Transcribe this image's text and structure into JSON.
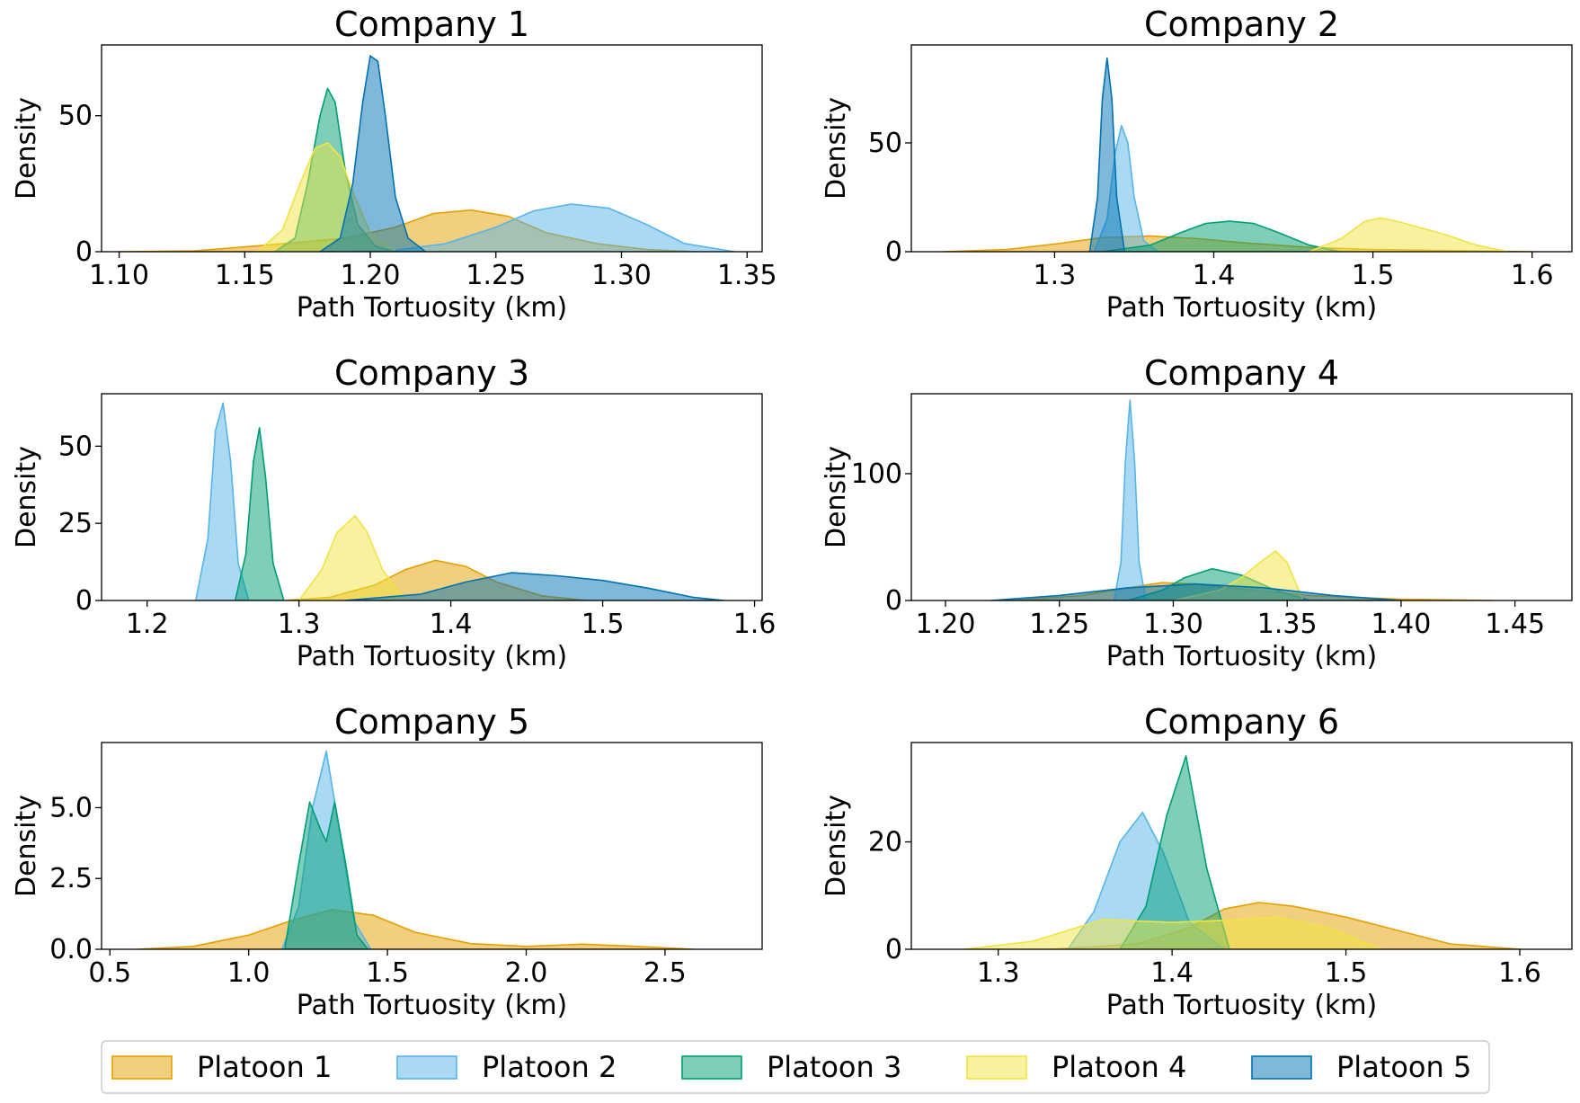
{
  "chart_data": [
    {
      "type": "area",
      "title": "Company 1",
      "xlabel": "Path Tortuosity (km)",
      "ylabel": "Density",
      "xlim": [
        1.093,
        1.356
      ],
      "ylim": [
        0,
        76
      ],
      "xticks": [
        1.1,
        1.15,
        1.2,
        1.25,
        1.3,
        1.35
      ],
      "xtick_labels": [
        "1.10",
        "1.15",
        "1.20",
        "1.25",
        "1.30",
        "1.35"
      ],
      "yticks": [
        0,
        50
      ],
      "ytick_labels": [
        "0",
        "50"
      ],
      "series": [
        {
          "name": "Platoon 1",
          "x": [
            1.1,
            1.13,
            1.16,
            1.19,
            1.21,
            1.225,
            1.24,
            1.255,
            1.27,
            1.29,
            1.31,
            1.33
          ],
          "y": [
            0,
            0.3,
            2.5,
            5,
            9,
            14,
            15.3,
            13,
            7,
            3,
            0.8,
            0
          ]
        },
        {
          "name": "Platoon 2",
          "x": [
            1.18,
            1.21,
            1.23,
            1.25,
            1.265,
            1.28,
            1.295,
            1.31,
            1.325,
            1.345
          ],
          "y": [
            0,
            0.5,
            3,
            9,
            15,
            17.5,
            16,
            10,
            3,
            0
          ]
        },
        {
          "name": "Platoon 3",
          "x": [
            1.162,
            1.17,
            1.175,
            1.18,
            1.183,
            1.186,
            1.19,
            1.195,
            1.202,
            1.21
          ],
          "y": [
            0,
            5,
            25,
            50,
            60,
            55,
            30,
            10,
            2,
            0
          ]
        },
        {
          "name": "Platoon 4",
          "x": [
            1.155,
            1.165,
            1.172,
            1.178,
            1.183,
            1.188,
            1.193,
            1.2,
            1.21
          ],
          "y": [
            0,
            8,
            25,
            38,
            40,
            35,
            22,
            7,
            0
          ]
        },
        {
          "name": "Platoon 5",
          "x": [
            1.18,
            1.188,
            1.193,
            1.197,
            1.2,
            1.203,
            1.206,
            1.21,
            1.215,
            1.222
          ],
          "y": [
            0,
            5,
            25,
            55,
            72,
            70,
            50,
            20,
            5,
            0
          ]
        }
      ]
    },
    {
      "type": "area",
      "title": "Company 2",
      "xlabel": "Path Tortuosity (km)",
      "ylabel": "Density",
      "xlim": [
        1.21,
        1.625
      ],
      "ylim": [
        0,
        95
      ],
      "xticks": [
        1.3,
        1.4,
        1.5,
        1.6
      ],
      "xtick_labels": [
        "1.3",
        "1.4",
        "1.5",
        "1.6"
      ],
      "yticks": [
        0,
        50
      ],
      "ytick_labels": [
        "0",
        "50"
      ],
      "series": [
        {
          "name": "Platoon 1",
          "x": [
            1.23,
            1.27,
            1.3,
            1.33,
            1.36,
            1.39,
            1.42,
            1.46,
            1.5,
            1.55,
            1.6
          ],
          "y": [
            0,
            1,
            3.5,
            6.5,
            7.2,
            6,
            4,
            2,
            1,
            0.5,
            0
          ]
        },
        {
          "name": "Platoon 2",
          "x": [
            1.325,
            1.333,
            1.338,
            1.342,
            1.346,
            1.35,
            1.356,
            1.365
          ],
          "y": [
            0,
            15,
            45,
            58,
            50,
            25,
            5,
            0
          ]
        },
        {
          "name": "Platoon 3",
          "x": [
            1.33,
            1.36,
            1.38,
            1.395,
            1.41,
            1.425,
            1.44,
            1.46,
            1.48
          ],
          "y": [
            0,
            3,
            9,
            13,
            14,
            13,
            9,
            3,
            0
          ]
        },
        {
          "name": "Platoon 4",
          "x": [
            1.46,
            1.48,
            1.495,
            1.505,
            1.515,
            1.53,
            1.545,
            1.565,
            1.585
          ],
          "y": [
            0,
            6,
            14,
            15.5,
            14,
            11,
            8,
            3,
            0
          ]
        },
        {
          "name": "Platoon 5",
          "x": [
            1.322,
            1.327,
            1.33,
            1.333,
            1.336,
            1.339,
            1.344
          ],
          "y": [
            0,
            25,
            70,
            89,
            70,
            25,
            0
          ]
        }
      ]
    },
    {
      "type": "area",
      "title": "Company 3",
      "xlabel": "Path Tortuosity (km)",
      "ylabel": "Density",
      "xlim": [
        1.17,
        1.605
      ],
      "ylim": [
        0,
        67
      ],
      "xticks": [
        1.2,
        1.3,
        1.4,
        1.5,
        1.6
      ],
      "xtick_labels": [
        "1.2",
        "1.3",
        "1.4",
        "1.5",
        "1.6"
      ],
      "yticks": [
        0,
        25,
        50
      ],
      "ytick_labels": [
        "0",
        "25",
        "50"
      ],
      "series": [
        {
          "name": "Platoon 1",
          "x": [
            1.29,
            1.32,
            1.35,
            1.37,
            1.39,
            1.41,
            1.43,
            1.46,
            1.49
          ],
          "y": [
            0,
            1,
            5,
            10,
            13,
            11,
            6,
            1.5,
            0
          ]
        },
        {
          "name": "Platoon 2",
          "x": [
            1.232,
            1.24,
            1.245,
            1.25,
            1.255,
            1.26,
            1.267
          ],
          "y": [
            0,
            20,
            55,
            64,
            45,
            12,
            0
          ]
        },
        {
          "name": "Platoon 3",
          "x": [
            1.258,
            1.265,
            1.27,
            1.274,
            1.278,
            1.283,
            1.29
          ],
          "y": [
            0,
            15,
            45,
            56,
            40,
            12,
            0
          ]
        },
        {
          "name": "Platoon 4",
          "x": [
            1.3,
            1.315,
            1.325,
            1.337,
            1.345,
            1.355,
            1.37
          ],
          "y": [
            0,
            10,
            22,
            27.5,
            22,
            10,
            0
          ]
        },
        {
          "name": "Platoon 5",
          "x": [
            1.33,
            1.38,
            1.41,
            1.44,
            1.47,
            1.5,
            1.53,
            1.56,
            1.58
          ],
          "y": [
            0,
            2,
            6,
            9,
            8,
            6.5,
            4,
            1,
            0
          ]
        }
      ]
    },
    {
      "type": "area",
      "title": "Company 4",
      "xlabel": "Path Tortuosity (km)",
      "ylabel": "Density",
      "xlim": [
        1.185,
        1.475
      ],
      "ylim": [
        0,
        163
      ],
      "xticks": [
        1.2,
        1.25,
        1.3,
        1.35,
        1.4,
        1.45
      ],
      "xtick_labels": [
        "1.20",
        "1.25",
        "1.30",
        "1.35",
        "1.40",
        "1.45"
      ],
      "yticks": [
        0,
        100
      ],
      "ytick_labels": [
        "0",
        "100"
      ],
      "series": [
        {
          "name": "Platoon 1",
          "x": [
            1.23,
            1.26,
            1.28,
            1.295,
            1.31,
            1.33,
            1.36,
            1.4,
            1.44
          ],
          "y": [
            0,
            4,
            10,
            14,
            13,
            9,
            4,
            1,
            0
          ]
        },
        {
          "name": "Platoon 2",
          "x": [
            1.274,
            1.277,
            1.279,
            1.281,
            1.283,
            1.285,
            1.288
          ],
          "y": [
            0,
            30,
            110,
            158,
            110,
            30,
            0
          ]
        },
        {
          "name": "Platoon 3",
          "x": [
            1.28,
            1.295,
            1.305,
            1.317,
            1.33,
            1.345,
            1.36
          ],
          "y": [
            0,
            8,
            18,
            25,
            20,
            8,
            0
          ]
        },
        {
          "name": "Platoon 4",
          "x": [
            1.3,
            1.32,
            1.33,
            1.338,
            1.345,
            1.35,
            1.357
          ],
          "y": [
            0,
            8,
            18,
            30,
            39,
            30,
            0
          ]
        },
        {
          "name": "Platoon 5",
          "x": [
            1.22,
            1.25,
            1.28,
            1.31,
            1.34,
            1.37,
            1.4
          ],
          "y": [
            0,
            4,
            10,
            13,
            10,
            4,
            0
          ]
        }
      ]
    },
    {
      "type": "area",
      "title": "Company 5",
      "xlabel": "Path Tortuosity (km)",
      "ylabel": "Density",
      "xlim": [
        0.47,
        2.85
      ],
      "ylim": [
        0,
        7.3
      ],
      "xticks": [
        0.5,
        1.0,
        1.5,
        2.0,
        2.5
      ],
      "xtick_labels": [
        "0.5",
        "1.0",
        "1.5",
        "2.0",
        "2.5"
      ],
      "yticks": [
        0,
        2.5,
        5.0
      ],
      "ytick_labels": [
        "0.0",
        "2.5",
        "5.0"
      ],
      "series": [
        {
          "name": "Platoon 1",
          "x": [
            0.6,
            0.8,
            1.0,
            1.15,
            1.3,
            1.45,
            1.6,
            1.8,
            2.0,
            2.2,
            2.4,
            2.6
          ],
          "y": [
            0,
            0.1,
            0.5,
            1.0,
            1.4,
            1.2,
            0.6,
            0.2,
            0.1,
            0.18,
            0.1,
            0
          ]
        },
        {
          "name": "Platoon 2",
          "x": [
            1.12,
            1.18,
            1.23,
            1.28,
            1.33,
            1.38,
            1.44
          ],
          "y": [
            0,
            1.5,
            5,
            7,
            4,
            1,
            0
          ]
        },
        {
          "name": "Platoon 3",
          "x": [
            1.13,
            1.18,
            1.22,
            1.26,
            1.28,
            1.31,
            1.35,
            1.39,
            1.43
          ],
          "y": [
            0,
            3,
            5.2,
            4.2,
            3.8,
            5.2,
            3,
            0.5,
            0
          ]
        }
      ]
    },
    {
      "type": "area",
      "title": "Company 6",
      "xlabel": "Path Tortuosity (km)",
      "ylabel": "Density",
      "xlim": [
        1.25,
        1.63
      ],
      "ylim": [
        0,
        38.5
      ],
      "xticks": [
        1.3,
        1.4,
        1.5,
        1.6
      ],
      "xtick_labels": [
        "1.3",
        "1.4",
        "1.5",
        "1.6"
      ],
      "yticks": [
        0,
        20
      ],
      "ytick_labels": [
        "0",
        "20"
      ],
      "series": [
        {
          "name": "Platoon 1",
          "x": [
            1.33,
            1.38,
            1.41,
            1.43,
            1.45,
            1.47,
            1.5,
            1.53,
            1.56,
            1.6
          ],
          "y": [
            0,
            1,
            4,
            7.5,
            8.7,
            8,
            6,
            3.5,
            1,
            0
          ]
        },
        {
          "name": "Platoon 2",
          "x": [
            1.34,
            1.355,
            1.37,
            1.383,
            1.395,
            1.41,
            1.43
          ],
          "y": [
            0,
            7,
            20,
            25.5,
            18,
            5,
            0
          ]
        },
        {
          "name": "Platoon 3",
          "x": [
            1.37,
            1.385,
            1.397,
            1.408,
            1.42,
            1.433
          ],
          "y": [
            0,
            8,
            25,
            36,
            15,
            0
          ]
        },
        {
          "name": "Platoon 4",
          "x": [
            1.28,
            1.32,
            1.36,
            1.4,
            1.44,
            1.46,
            1.49,
            1.52
          ],
          "y": [
            0,
            1.5,
            5.5,
            5,
            5.5,
            6,
            4,
            0
          ]
        }
      ]
    }
  ],
  "legend": {
    "placement": "bottom",
    "items": [
      {
        "label": "Platoon 1",
        "fill": "#E69F00",
        "edge": "#E69F00"
      },
      {
        "label": "Platoon 2",
        "fill": "#56B4E9",
        "edge": "#56B4E9"
      },
      {
        "label": "Platoon 3",
        "fill": "#009E73",
        "edge": "#009E73"
      },
      {
        "label": "Platoon 4",
        "fill": "#F0E442",
        "edge": "#F0E442"
      },
      {
        "label": "Platoon 5",
        "fill": "#0072B2",
        "edge": "#0072B2"
      }
    ]
  }
}
